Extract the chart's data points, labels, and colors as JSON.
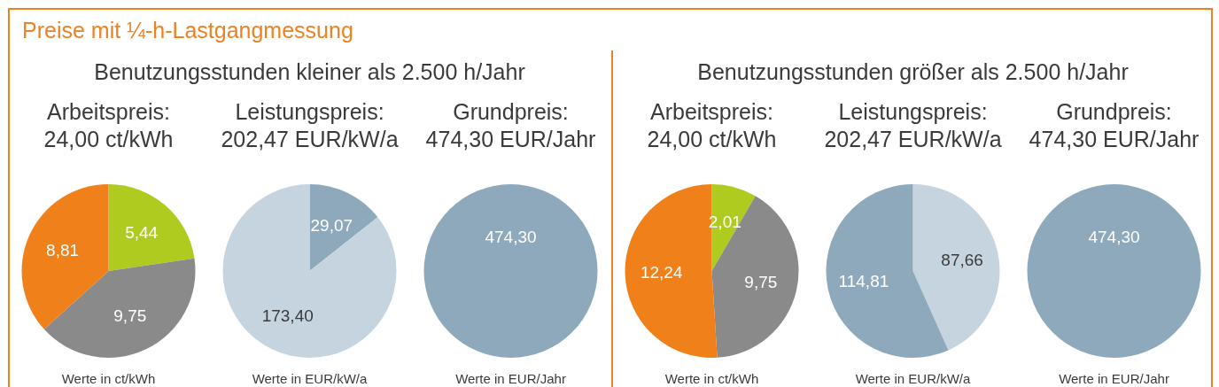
{
  "chart_data": [
    {
      "type": "other",
      "title": "Preise mit ¼-h-Lastgangmessung"
    },
    {
      "type": "other",
      "title": "Benutzungsstunden kleiner als 2.500 h/Jahr"
    },
    {
      "type": "pie",
      "title": "Arbeitspreis:",
      "subtitle": "24,00 ct/kWh",
      "categories": [
        null,
        null,
        null
      ],
      "values": [
        5.44,
        9.75,
        8.81
      ],
      "colors": [
        "#b0cb1f",
        "#8a8a8a",
        "#f08019"
      ],
      "value_labels": [
        "5,44",
        "9,75",
        "8,81"
      ],
      "annotations": [
        "Werte in ct/kWh"
      ]
    },
    {
      "type": "pie",
      "title": "Leistungspreis:",
      "subtitle": "202,47 EUR/kW/a",
      "categories": [
        null,
        null
      ],
      "values": [
        29.07,
        173.4
      ],
      "colors": [
        "#8ea9bc",
        "#c5d4df"
      ],
      "value_labels": [
        "29,07",
        "173,40"
      ],
      "annotations": [
        "Werte in EUR/kW/a"
      ]
    },
    {
      "type": "pie",
      "title": "Grundpreis:",
      "subtitle": "474,30 EUR/Jahr",
      "categories": [
        null
      ],
      "values": [
        474.3
      ],
      "colors": [
        "#8ea9bc"
      ],
      "value_labels": [
        "474,30"
      ],
      "annotations": [
        "Werte in EUR/Jahr"
      ]
    },
    {
      "type": "other",
      "title": "Benutzungsstunden größer als 2.500 h/Jahr"
    },
    {
      "type": "pie",
      "title": "Arbeitspreis:",
      "subtitle": "24,00 ct/kWh",
      "categories": [
        null,
        null,
        null
      ],
      "values": [
        2.01,
        9.75,
        12.24
      ],
      "colors": [
        "#b0cb1f",
        "#8a8a8a",
        "#f08019"
      ],
      "value_labels": [
        "2,01",
        "9,75",
        "12,24"
      ],
      "annotations": [
        "Werte in ct/kWh"
      ]
    },
    {
      "type": "pie",
      "title": "Leistungspreis:",
      "subtitle": "202,47 EUR/kW/a",
      "categories": [
        null,
        null
      ],
      "values": [
        87.66,
        114.81
      ],
      "colors": [
        "#c5d4df",
        "#8ea9bc"
      ],
      "value_labels": [
        "87,66",
        "114,81"
      ],
      "annotations": [
        "Werte in EUR/kW/a"
      ]
    },
    {
      "type": "pie",
      "title": "Grundpreis:",
      "subtitle": "474,30 EUR/Jahr",
      "categories": [
        null
      ],
      "values": [
        474.3
      ],
      "colors": [
        "#8ea9bc"
      ],
      "value_labels": [
        "474,30"
      ],
      "annotations": [
        "Werte in EUR/Jahr"
      ]
    }
  ]
}
